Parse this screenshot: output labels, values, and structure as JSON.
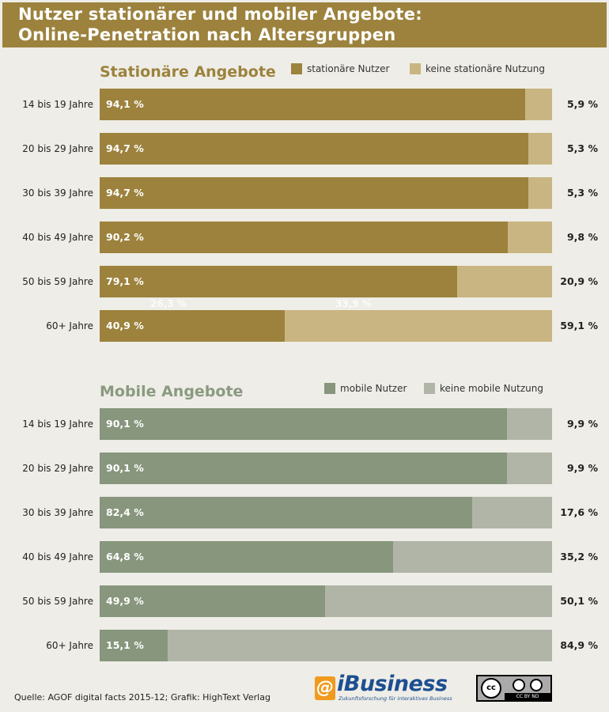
{
  "header": {
    "title_line1": "Nutzer stationärer und mobiler Angebote:",
    "title_line2": "Online-Penetration nach Altersgruppen"
  },
  "chart_data": [
    {
      "type": "bar",
      "orientation": "horizontal",
      "stacked": true,
      "title": "Stationäre Angebote",
      "categories": [
        "14 bis 19 Jahre",
        "20 bis 29 Jahre",
        "30 bis 39 Jahre",
        "40 bis 49 Jahre",
        "50 bis 59 Jahre",
        "60+ Jahre"
      ],
      "labels_in": [
        "94,1 %",
        "94,7 %",
        "94,7  %",
        "90,2 %",
        "79,1 %",
        "40,9 %"
      ],
      "labels_out": [
        "5,9 %",
        "5,3 %",
        "5,3 %",
        "9,8 %",
        "20,9 %",
        "59,1 %"
      ],
      "series": [
        {
          "name": "stationäre Nutzer",
          "color": "#9c823d",
          "values": [
            94.1,
            94.7,
            94.7,
            90.2,
            79.1,
            40.9
          ]
        },
        {
          "name": "keine stationäre Nutzung",
          "color": "#c9b581",
          "values": [
            5.9,
            5.3,
            5.3,
            9.8,
            20.9,
            59.1
          ]
        }
      ],
      "annotations": [
        "26,3 %",
        "33,9 %"
      ],
      "xlim": [
        0,
        100
      ],
      "legend": "top-right"
    },
    {
      "type": "bar",
      "orientation": "horizontal",
      "stacked": true,
      "title": "Mobile Angebote",
      "categories": [
        "14 bis 19 Jahre",
        "20 bis 29 Jahre",
        "30 bis 39 Jahre",
        "40 bis 49 Jahre",
        "50 bis 59 Jahre",
        "60+ Jahre"
      ],
      "labels_in": [
        "90,1 %",
        "90,1 %",
        "82,4 %",
        "64,8 %",
        "49,9 %",
        "15,1 %"
      ],
      "labels_out": [
        "9,9 %",
        "9,9 %",
        "17,6 %",
        "35,2 %",
        "50,1 %",
        "84,9 %"
      ],
      "series": [
        {
          "name": "mobile Nutzer",
          "color": "#87967d",
          "values": [
            90.1,
            90.1,
            82.4,
            64.8,
            49.9,
            15.1
          ]
        },
        {
          "name": "keine mobile Nutzung",
          "color": "#b1b5a7",
          "values": [
            9.9,
            9.9,
            17.6,
            35.2,
            50.1,
            84.9
          ]
        }
      ],
      "xlim": [
        0,
        100
      ],
      "legend": "top-right"
    }
  ],
  "footer": {
    "source": "Quelle: AGOF digital facts 2015-12; Grafik: HighText Verlag",
    "logo_text": "iBusiness",
    "logo_tagline": "Zukunftsforschung für interaktives Business",
    "license": "CC BY ND"
  }
}
